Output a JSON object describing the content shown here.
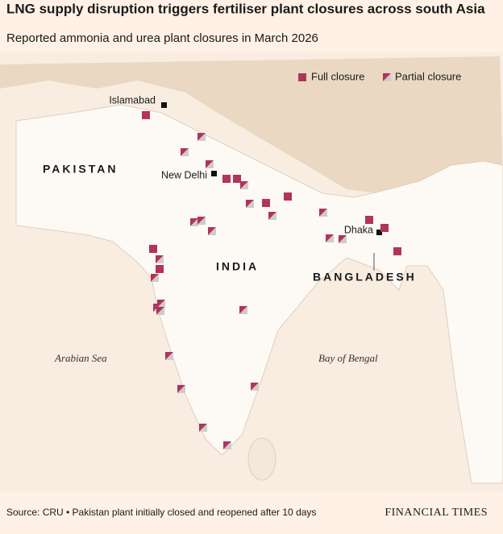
{
  "header": {
    "title": "LNG supply disruption triggers fertiliser plant closures across south Asia",
    "subtitle": "Reported ammonia and urea plant closures in March 2026"
  },
  "legend": {
    "full": "Full closure",
    "partial": "Partial closure"
  },
  "map": {
    "countries": [
      "PAKISTAN",
      "INDIA",
      "BANGLADESH"
    ],
    "cities": [
      "Islamabad",
      "New Delhi",
      "Dhaka"
    ],
    "seas": [
      "Arabian Sea",
      "Bay of Bengal"
    ]
  },
  "footer": {
    "source": "Source: CRU • Pakistan plant initially closed and reopened after 10 days",
    "brand": "FINANCIAL TIMES"
  }
}
